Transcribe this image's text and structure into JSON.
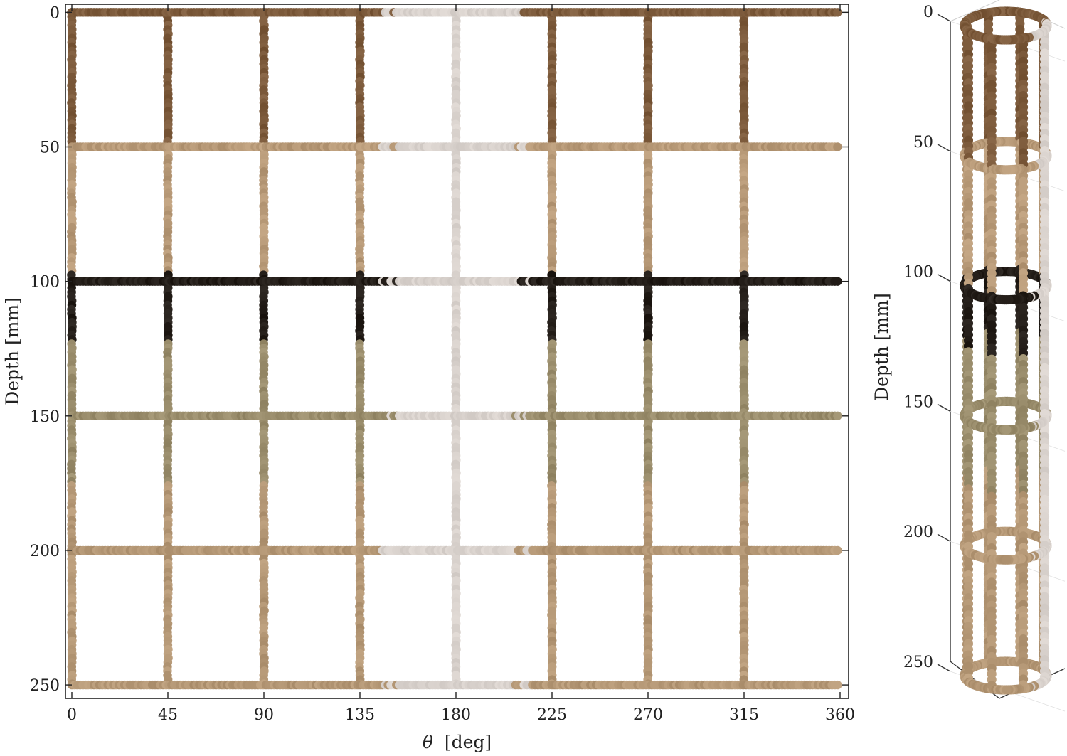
{
  "chart_data": [
    {
      "type": "scatter",
      "xlabel_symbol": "θ",
      "xlabel_unit": "[deg]",
      "ylabel": "Depth [mm]",
      "xlim": [
        -3,
        364
      ],
      "ylim": [
        255,
        -3
      ],
      "xticks": [
        0,
        45,
        90,
        135,
        180,
        225,
        270,
        315,
        360
      ],
      "yticks": [
        0,
        50,
        100,
        150,
        200,
        250
      ],
      "grid": false,
      "vertical_scan_lines_deg": [
        0,
        45,
        90,
        135,
        180,
        225,
        270,
        315
      ],
      "horizontal_scan_lines_mm": [
        0,
        50,
        100,
        150,
        200,
        250
      ],
      "depth_color_bands": [
        {
          "from": 0,
          "to": 50,
          "color": "#7d5b3c"
        },
        {
          "from": 50,
          "to": 97,
          "color": "#b89a78"
        },
        {
          "from": 97,
          "to": 123,
          "color": "#241e19"
        },
        {
          "from": 123,
          "to": 175,
          "color": "#9a8d6c"
        },
        {
          "from": 175,
          "to": 255,
          "color": "#b59876"
        }
      ],
      "light_sector_deg": [
        145,
        215
      ],
      "light_color": "#d9d2cd"
    },
    {
      "type": "scatter",
      "projection": "3d-cylinder",
      "ylabel": "Depth [mm]",
      "zticks": [
        0,
        50,
        100,
        150,
        200,
        250
      ]
    }
  ]
}
